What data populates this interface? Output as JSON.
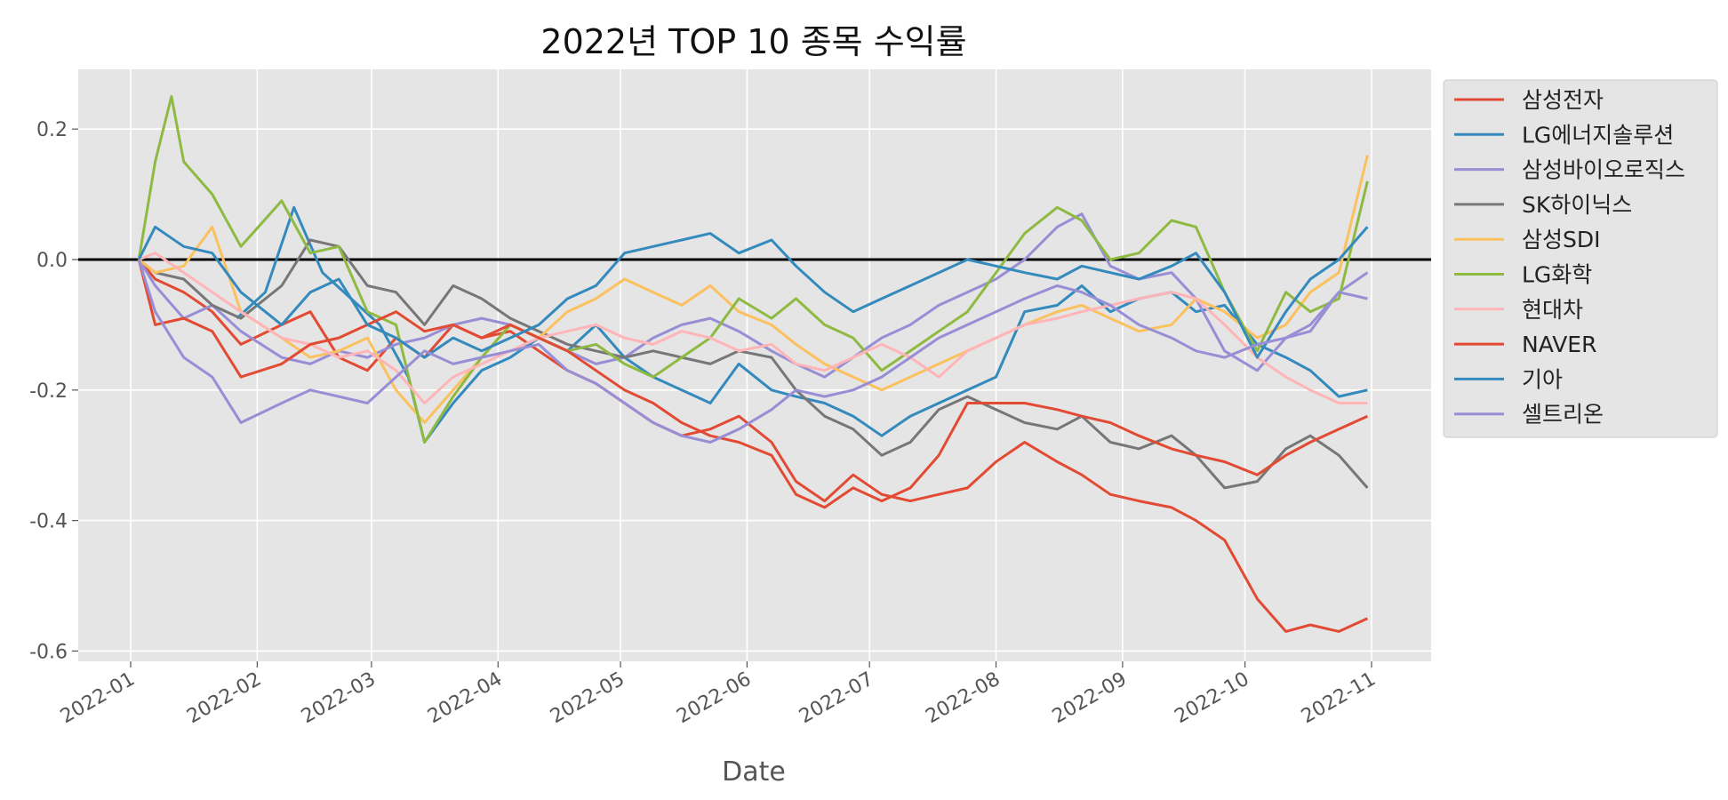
{
  "chart_data": {
    "type": "line",
    "title": "2022년 TOP 10 종목 수익률",
    "xlabel": "Date",
    "ylabel": "",
    "x_range": [
      "2022-01-01",
      "2022-11-01"
    ],
    "ylim": [
      -0.62,
      0.29
    ],
    "x_ticks": [
      "2022-01",
      "2022-02",
      "2022-03",
      "2022-04",
      "2022-05",
      "2022-06",
      "2022-07",
      "2022-08",
      "2022-09",
      "2022-10",
      "2022-11"
    ],
    "y_ticks": [
      0.2,
      0.0,
      -0.2,
      -0.4,
      -0.6
    ],
    "y_tick_labels": [
      "0.2",
      "0.0",
      "-0.2",
      "-0.4",
      "-0.6"
    ],
    "reference_line": 0,
    "grid": true,
    "legend_position": "outside-right-top",
    "series": [
      {
        "name": "삼성전자",
        "color": "#e24a33",
        "x": [
          "2022-01-03",
          "2022-01-07",
          "2022-01-14",
          "2022-01-21",
          "2022-01-28",
          "2022-02-07",
          "2022-02-14",
          "2022-02-21",
          "2022-02-28",
          "2022-03-07",
          "2022-03-14",
          "2022-03-21",
          "2022-03-28",
          "2022-04-04",
          "2022-04-11",
          "2022-04-18",
          "2022-04-25",
          "2022-05-02",
          "2022-05-09",
          "2022-05-16",
          "2022-05-23",
          "2022-05-30",
          "2022-06-07",
          "2022-06-13",
          "2022-06-20",
          "2022-06-27",
          "2022-07-04",
          "2022-07-11",
          "2022-07-18",
          "2022-07-25",
          "2022-08-01",
          "2022-08-08",
          "2022-08-16",
          "2022-08-22",
          "2022-08-29",
          "2022-09-05",
          "2022-09-13",
          "2022-09-19",
          "2022-09-26",
          "2022-10-04",
          "2022-10-11",
          "2022-10-17",
          "2022-10-24",
          "2022-10-31"
        ],
        "values": [
          0.0,
          -0.03,
          -0.05,
          -0.08,
          -0.13,
          -0.1,
          -0.08,
          -0.15,
          -0.17,
          -0.12,
          -0.15,
          -0.1,
          -0.12,
          -0.11,
          -0.14,
          -0.17,
          -0.19,
          -0.22,
          -0.25,
          -0.27,
          -0.26,
          -0.24,
          -0.28,
          -0.34,
          -0.37,
          -0.33,
          -0.36,
          -0.37,
          -0.36,
          -0.35,
          -0.31,
          -0.28,
          -0.31,
          -0.33,
          -0.36,
          -0.37,
          -0.38,
          -0.4,
          -0.43,
          -0.52,
          -0.57,
          -0.56,
          -0.57,
          -0.55
        ]
      },
      {
        "name": "LG에너지솔루션",
        "color": "#348abd",
        "x": [
          "2022-01-27",
          "2022-02-03",
          "2022-02-10",
          "2022-02-17",
          "2022-02-24",
          "2022-03-03",
          "2022-03-10",
          "2022-03-14",
          "2022-03-21",
          "2022-03-28",
          "2022-04-04",
          "2022-04-11",
          "2022-04-18",
          "2022-04-25",
          "2022-05-02",
          "2022-05-09",
          "2022-05-16",
          "2022-05-23",
          "2022-05-30",
          "2022-06-07",
          "2022-06-13",
          "2022-06-20",
          "2022-06-27",
          "2022-07-04",
          "2022-07-11",
          "2022-07-18",
          "2022-07-25",
          "2022-08-01",
          "2022-08-08",
          "2022-08-16",
          "2022-08-22",
          "2022-08-29",
          "2022-09-05",
          "2022-09-13",
          "2022-09-19",
          "2022-09-26",
          "2022-10-04",
          "2022-10-11",
          "2022-10-17",
          "2022-10-24",
          "2022-10-31"
        ],
        "values": [
          -0.09,
          -0.05,
          0.08,
          -0.02,
          -0.06,
          -0.1,
          -0.18,
          -0.28,
          -0.22,
          -0.17,
          -0.15,
          -0.12,
          -0.14,
          -0.1,
          -0.15,
          -0.18,
          -0.2,
          -0.22,
          -0.16,
          -0.2,
          -0.21,
          -0.22,
          -0.24,
          -0.27,
          -0.24,
          -0.22,
          -0.2,
          -0.18,
          -0.08,
          -0.07,
          -0.04,
          -0.08,
          -0.06,
          -0.05,
          -0.08,
          -0.07,
          -0.13,
          -0.15,
          -0.17,
          -0.21,
          -0.2
        ]
      },
      {
        "name": "삼성바이오로직스",
        "color": "#988ed5",
        "x": [
          "2022-01-03",
          "2022-01-07",
          "2022-01-14",
          "2022-01-21",
          "2022-01-28",
          "2022-02-07",
          "2022-02-14",
          "2022-02-21",
          "2022-02-28",
          "2022-03-07",
          "2022-03-14",
          "2022-03-21",
          "2022-03-28",
          "2022-04-04",
          "2022-04-11",
          "2022-04-18",
          "2022-04-25",
          "2022-05-02",
          "2022-05-09",
          "2022-05-16",
          "2022-05-23",
          "2022-05-30",
          "2022-06-07",
          "2022-06-13",
          "2022-06-20",
          "2022-06-27",
          "2022-07-04",
          "2022-07-11",
          "2022-07-18",
          "2022-07-25",
          "2022-08-01",
          "2022-08-08",
          "2022-08-16",
          "2022-08-22",
          "2022-08-29",
          "2022-09-05",
          "2022-09-13",
          "2022-09-19",
          "2022-09-26",
          "2022-10-04",
          "2022-10-11",
          "2022-10-17",
          "2022-10-24",
          "2022-10-31"
        ],
        "values": [
          0.0,
          -0.04,
          -0.09,
          -0.07,
          -0.11,
          -0.15,
          -0.16,
          -0.14,
          -0.15,
          -0.13,
          -0.12,
          -0.1,
          -0.09,
          -0.1,
          -0.12,
          -0.14,
          -0.16,
          -0.15,
          -0.12,
          -0.1,
          -0.09,
          -0.11,
          -0.14,
          -0.16,
          -0.18,
          -0.15,
          -0.12,
          -0.1,
          -0.07,
          -0.05,
          -0.03,
          0.0,
          0.05,
          0.07,
          -0.01,
          -0.03,
          -0.02,
          -0.06,
          -0.14,
          -0.17,
          -0.12,
          -0.11,
          -0.05,
          -0.02
        ]
      },
      {
        "name": "SK하이닉스",
        "color": "#777777",
        "x": [
          "2022-01-03",
          "2022-01-07",
          "2022-01-14",
          "2022-01-21",
          "2022-01-28",
          "2022-02-07",
          "2022-02-14",
          "2022-02-21",
          "2022-02-28",
          "2022-03-07",
          "2022-03-14",
          "2022-03-21",
          "2022-03-28",
          "2022-04-04",
          "2022-04-11",
          "2022-04-18",
          "2022-04-25",
          "2022-05-02",
          "2022-05-09",
          "2022-05-16",
          "2022-05-23",
          "2022-05-30",
          "2022-06-07",
          "2022-06-13",
          "2022-06-20",
          "2022-06-27",
          "2022-07-04",
          "2022-07-11",
          "2022-07-18",
          "2022-07-25",
          "2022-08-01",
          "2022-08-08",
          "2022-08-16",
          "2022-08-22",
          "2022-08-29",
          "2022-09-05",
          "2022-09-13",
          "2022-09-19",
          "2022-09-26",
          "2022-10-04",
          "2022-10-11",
          "2022-10-17",
          "2022-10-24",
          "2022-10-31"
        ],
        "values": [
          0.0,
          -0.02,
          -0.03,
          -0.07,
          -0.09,
          -0.04,
          0.03,
          0.02,
          -0.04,
          -0.05,
          -0.1,
          -0.04,
          -0.06,
          -0.09,
          -0.11,
          -0.13,
          -0.14,
          -0.15,
          -0.14,
          -0.15,
          -0.16,
          -0.14,
          -0.15,
          -0.2,
          -0.24,
          -0.26,
          -0.3,
          -0.28,
          -0.23,
          -0.21,
          -0.23,
          -0.25,
          -0.26,
          -0.24,
          -0.28,
          -0.29,
          -0.27,
          -0.3,
          -0.35,
          -0.34,
          -0.29,
          -0.27,
          -0.3,
          -0.35
        ]
      },
      {
        "name": "삼성SDI",
        "color": "#fbc15e",
        "x": [
          "2022-01-03",
          "2022-01-07",
          "2022-01-14",
          "2022-01-21",
          "2022-01-28",
          "2022-02-07",
          "2022-02-14",
          "2022-02-21",
          "2022-02-28",
          "2022-03-07",
          "2022-03-14",
          "2022-03-21",
          "2022-03-28",
          "2022-04-04",
          "2022-04-11",
          "2022-04-18",
          "2022-04-25",
          "2022-05-02",
          "2022-05-09",
          "2022-05-16",
          "2022-05-23",
          "2022-05-30",
          "2022-06-07",
          "2022-06-13",
          "2022-06-20",
          "2022-06-27",
          "2022-07-04",
          "2022-07-11",
          "2022-07-18",
          "2022-07-25",
          "2022-08-01",
          "2022-08-08",
          "2022-08-16",
          "2022-08-22",
          "2022-08-29",
          "2022-09-05",
          "2022-09-13",
          "2022-09-19",
          "2022-09-26",
          "2022-10-04",
          "2022-10-11",
          "2022-10-17",
          "2022-10-24",
          "2022-10-31"
        ],
        "values": [
          0.0,
          -0.02,
          -0.01,
          0.05,
          -0.08,
          -0.12,
          -0.15,
          -0.14,
          -0.12,
          -0.2,
          -0.25,
          -0.2,
          -0.15,
          -0.1,
          -0.12,
          -0.08,
          -0.06,
          -0.03,
          -0.05,
          -0.07,
          -0.04,
          -0.08,
          -0.1,
          -0.13,
          -0.16,
          -0.18,
          -0.2,
          -0.18,
          -0.16,
          -0.14,
          -0.12,
          -0.1,
          -0.08,
          -0.07,
          -0.09,
          -0.11,
          -0.1,
          -0.06,
          -0.08,
          -0.12,
          -0.1,
          -0.05,
          -0.02,
          0.16
        ]
      },
      {
        "name": "LG화학",
        "color": "#8eba42",
        "x": [
          "2022-01-03",
          "2022-01-07",
          "2022-01-11",
          "2022-01-14",
          "2022-01-21",
          "2022-01-28",
          "2022-02-07",
          "2022-02-14",
          "2022-02-21",
          "2022-02-28",
          "2022-03-07",
          "2022-03-14",
          "2022-03-21",
          "2022-03-28",
          "2022-04-04",
          "2022-04-11",
          "2022-04-18",
          "2022-04-25",
          "2022-05-02",
          "2022-05-09",
          "2022-05-16",
          "2022-05-23",
          "2022-05-30",
          "2022-06-07",
          "2022-06-13",
          "2022-06-20",
          "2022-06-27",
          "2022-07-04",
          "2022-07-11",
          "2022-07-18",
          "2022-07-25",
          "2022-08-01",
          "2022-08-08",
          "2022-08-16",
          "2022-08-22",
          "2022-08-29",
          "2022-09-05",
          "2022-09-13",
          "2022-09-19",
          "2022-09-26",
          "2022-10-04",
          "2022-10-11",
          "2022-10-17",
          "2022-10-24",
          "2022-10-31"
        ],
        "values": [
          0.0,
          0.15,
          0.25,
          0.15,
          0.1,
          0.02,
          0.09,
          0.01,
          0.02,
          -0.08,
          -0.1,
          -0.28,
          -0.21,
          -0.15,
          -0.1,
          -0.12,
          -0.14,
          -0.13,
          -0.16,
          -0.18,
          -0.15,
          -0.12,
          -0.06,
          -0.09,
          -0.06,
          -0.1,
          -0.12,
          -0.17,
          -0.14,
          -0.11,
          -0.08,
          -0.02,
          0.04,
          0.08,
          0.06,
          0.0,
          0.01,
          0.06,
          0.05,
          -0.05,
          -0.14,
          -0.05,
          -0.08,
          -0.06,
          0.12
        ]
      },
      {
        "name": "현대차",
        "color": "#ffb5b8",
        "x": [
          "2022-01-03",
          "2022-01-07",
          "2022-01-14",
          "2022-01-21",
          "2022-01-28",
          "2022-02-07",
          "2022-02-14",
          "2022-02-21",
          "2022-02-28",
          "2022-03-07",
          "2022-03-14",
          "2022-03-21",
          "2022-03-28",
          "2022-04-04",
          "2022-04-11",
          "2022-04-18",
          "2022-04-25",
          "2022-05-02",
          "2022-05-09",
          "2022-05-16",
          "2022-05-23",
          "2022-05-30",
          "2022-06-07",
          "2022-06-13",
          "2022-06-20",
          "2022-06-27",
          "2022-07-04",
          "2022-07-11",
          "2022-07-18",
          "2022-07-25",
          "2022-08-01",
          "2022-08-08",
          "2022-08-16",
          "2022-08-22",
          "2022-08-29",
          "2022-09-05",
          "2022-09-13",
          "2022-09-19",
          "2022-09-26",
          "2022-10-04",
          "2022-10-11",
          "2022-10-17",
          "2022-10-24",
          "2022-10-31"
        ],
        "values": [
          0.0,
          0.01,
          -0.02,
          -0.05,
          -0.08,
          -0.12,
          -0.13,
          -0.15,
          -0.14,
          -0.17,
          -0.22,
          -0.18,
          -0.16,
          -0.14,
          -0.12,
          -0.11,
          -0.1,
          -0.12,
          -0.13,
          -0.11,
          -0.12,
          -0.14,
          -0.13,
          -0.16,
          -0.17,
          -0.15,
          -0.13,
          -0.15,
          -0.18,
          -0.14,
          -0.12,
          -0.1,
          -0.09,
          -0.08,
          -0.07,
          -0.06,
          -0.05,
          -0.06,
          -0.1,
          -0.15,
          -0.18,
          -0.2,
          -0.22,
          -0.22
        ]
      },
      {
        "name": "NAVER",
        "color": "#e24a33",
        "x": [
          "2022-01-03",
          "2022-01-07",
          "2022-01-14",
          "2022-01-21",
          "2022-01-28",
          "2022-02-07",
          "2022-02-14",
          "2022-02-21",
          "2022-02-28",
          "2022-03-07",
          "2022-03-14",
          "2022-03-21",
          "2022-03-28",
          "2022-04-04",
          "2022-04-11",
          "2022-04-18",
          "2022-04-25",
          "2022-05-02",
          "2022-05-09",
          "2022-05-16",
          "2022-05-23",
          "2022-05-30",
          "2022-06-07",
          "2022-06-13",
          "2022-06-20",
          "2022-06-27",
          "2022-07-04",
          "2022-07-11",
          "2022-07-18",
          "2022-07-25",
          "2022-08-01",
          "2022-08-08",
          "2022-08-16",
          "2022-08-22",
          "2022-08-29",
          "2022-09-05",
          "2022-09-13",
          "2022-09-19",
          "2022-09-26",
          "2022-10-04",
          "2022-10-11",
          "2022-10-17",
          "2022-10-24",
          "2022-10-31"
        ],
        "values": [
          0.0,
          -0.1,
          -0.09,
          -0.11,
          -0.18,
          -0.16,
          -0.13,
          -0.12,
          -0.1,
          -0.08,
          -0.11,
          -0.1,
          -0.12,
          -0.1,
          -0.12,
          -0.14,
          -0.17,
          -0.2,
          -0.22,
          -0.25,
          -0.27,
          -0.28,
          -0.3,
          -0.36,
          -0.38,
          -0.35,
          -0.37,
          -0.35,
          -0.3,
          -0.22,
          -0.22,
          -0.22,
          -0.23,
          -0.24,
          -0.25,
          -0.27,
          -0.29,
          -0.3,
          -0.31,
          -0.33,
          -0.3,
          -0.28,
          -0.26,
          -0.24
        ]
      },
      {
        "name": "기아",
        "color": "#348abd",
        "x": [
          "2022-01-03",
          "2022-01-07",
          "2022-01-14",
          "2022-01-21",
          "2022-01-28",
          "2022-02-07",
          "2022-02-14",
          "2022-02-21",
          "2022-02-28",
          "2022-03-07",
          "2022-03-14",
          "2022-03-21",
          "2022-03-28",
          "2022-04-04",
          "2022-04-11",
          "2022-04-18",
          "2022-04-25",
          "2022-05-02",
          "2022-05-09",
          "2022-05-16",
          "2022-05-23",
          "2022-05-30",
          "2022-06-07",
          "2022-06-13",
          "2022-06-20",
          "2022-06-27",
          "2022-07-04",
          "2022-07-11",
          "2022-07-18",
          "2022-07-25",
          "2022-08-01",
          "2022-08-08",
          "2022-08-16",
          "2022-08-22",
          "2022-08-29",
          "2022-09-05",
          "2022-09-13",
          "2022-09-19",
          "2022-09-26",
          "2022-10-04",
          "2022-10-11",
          "2022-10-17",
          "2022-10-24",
          "2022-10-31"
        ],
        "values": [
          0.0,
          0.05,
          0.02,
          0.01,
          -0.05,
          -0.1,
          -0.05,
          -0.03,
          -0.1,
          -0.12,
          -0.15,
          -0.12,
          -0.14,
          -0.12,
          -0.1,
          -0.06,
          -0.04,
          0.01,
          0.02,
          0.03,
          0.04,
          0.01,
          0.03,
          -0.01,
          -0.05,
          -0.08,
          -0.06,
          -0.04,
          -0.02,
          0.0,
          -0.01,
          -0.02,
          -0.03,
          -0.01,
          -0.02,
          -0.03,
          -0.01,
          0.01,
          -0.05,
          -0.15,
          -0.08,
          -0.03,
          0.0,
          0.05
        ]
      },
      {
        "name": "셀트리온",
        "color": "#988ed5",
        "x": [
          "2022-01-03",
          "2022-01-07",
          "2022-01-14",
          "2022-01-21",
          "2022-01-28",
          "2022-02-07",
          "2022-02-14",
          "2022-02-21",
          "2022-02-28",
          "2022-03-07",
          "2022-03-14",
          "2022-03-21",
          "2022-03-28",
          "2022-04-04",
          "2022-04-11",
          "2022-04-18",
          "2022-04-25",
          "2022-05-02",
          "2022-05-09",
          "2022-05-16",
          "2022-05-23",
          "2022-05-30",
          "2022-06-07",
          "2022-06-13",
          "2022-06-20",
          "2022-06-27",
          "2022-07-04",
          "2022-07-11",
          "2022-07-18",
          "2022-07-25",
          "2022-08-01",
          "2022-08-08",
          "2022-08-16",
          "2022-08-22",
          "2022-08-29",
          "2022-09-05",
          "2022-09-13",
          "2022-09-19",
          "2022-09-26",
          "2022-10-04",
          "2022-10-11",
          "2022-10-17",
          "2022-10-24",
          "2022-10-31"
        ],
        "values": [
          0.0,
          -0.08,
          -0.15,
          -0.18,
          -0.25,
          -0.22,
          -0.2,
          -0.21,
          -0.22,
          -0.18,
          -0.14,
          -0.16,
          -0.15,
          -0.14,
          -0.13,
          -0.17,
          -0.19,
          -0.22,
          -0.25,
          -0.27,
          -0.28,
          -0.26,
          -0.23,
          -0.2,
          -0.21,
          -0.2,
          -0.18,
          -0.15,
          -0.12,
          -0.1,
          -0.08,
          -0.06,
          -0.04,
          -0.05,
          -0.07,
          -0.1,
          -0.12,
          -0.14,
          -0.15,
          -0.13,
          -0.12,
          -0.1,
          -0.05,
          -0.06
        ]
      }
    ]
  }
}
